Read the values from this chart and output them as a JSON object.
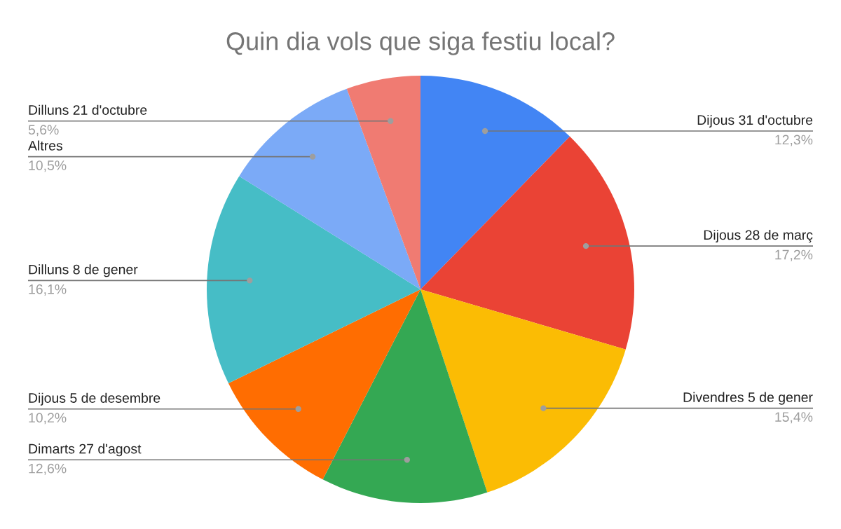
{
  "chart_data": {
    "type": "pie",
    "title": "Quin dia vols que siga festiu local?",
    "categories": [
      "Dijous 31 d'octubre",
      "Dijous 28 de març",
      "Divendres 5 de gener",
      "Dimarts 27 d'agost",
      "Dijous 5 de desembre",
      "Dilluns 8 de gener",
      "Altres",
      "Dilluns 21 d'octubre"
    ],
    "values": [
      12.3,
      17.2,
      15.4,
      12.6,
      10.2,
      16.1,
      10.5,
      5.6
    ],
    "colors": [
      "#4285f4",
      "#ea4335",
      "#fbbc04",
      "#34a853",
      "#ff6d01",
      "#46bdc6",
      "#7baaf7",
      "#f07b72"
    ],
    "value_labels": [
      "12,3%",
      "17,2%",
      "15,4%",
      "12,6%",
      "10,2%",
      "16,1%",
      "10,5%",
      "5,6%"
    ]
  }
}
